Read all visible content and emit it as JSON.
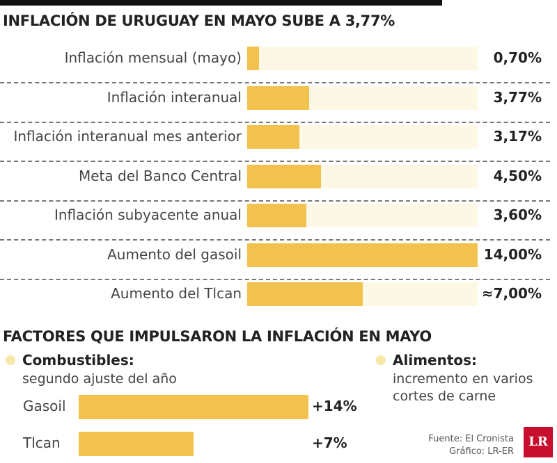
{
  "chart_data": [
    {
      "type": "bar",
      "title": "INFLACIÓN DE URUGUAY EN MAYO SUBE A 3,77%",
      "categories": [
        "Inflación mensual (mayo)",
        "Inflación interanual",
        "Inflación interanual mes anterior",
        "Meta del Banco Central",
        "Inflación subyacente anual",
        "Aumento del gasoil",
        "Aumento del Tlcan"
      ],
      "values": [
        0.7,
        3.77,
        3.17,
        4.5,
        3.6,
        14.0,
        7.0
      ],
      "value_labels": [
        "0,70%",
        "3,77%",
        "3,17%",
        "4,50%",
        "3,60%",
        "14,00%",
        "≈7,00%"
      ],
      "color": "#f2c14e",
      "track_color": "#fdf8e6",
      "xlim": [
        0,
        14
      ]
    },
    {
      "type": "bar",
      "title": "FACTORES QUE IMPULSARON LA INFLACIÓN EN MAYO",
      "notes": [
        {
          "title": "Combustibles:",
          "text": "segundo ajuste del año"
        },
        {
          "title": "Alimentos:",
          "text": "incremento en varios cortes de carne"
        }
      ],
      "categories": [
        "Gasoil",
        "Tlcan"
      ],
      "values": [
        14,
        7
      ],
      "value_labels": [
        "+14%",
        "+7%"
      ],
      "color": "#f2c14e",
      "xlim": [
        0,
        14
      ]
    }
  ],
  "source": "Fuente: El Cronista",
  "credit": "Gráfico: LR-ER",
  "logo": "LR"
}
